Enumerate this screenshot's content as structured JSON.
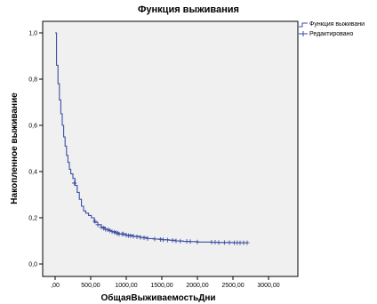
{
  "chart_data": {
    "type": "line",
    "title": "Функция выживания",
    "xlabel": "ОбщаяВыживаемостьДни",
    "ylabel": "Накопленное выживание",
    "xlim": [
      0,
      3000
    ],
    "ylim": [
      0,
      1
    ],
    "x_ticks": [
      0,
      500,
      1000,
      1500,
      2000,
      2500,
      3000
    ],
    "x_tick_labels": [
      ",00",
      "500,00",
      "1000,00",
      "1500,00",
      "2000,00",
      "2500,00",
      "3000,00"
    ],
    "y_ticks": [
      0,
      0.2,
      0.4,
      0.6,
      0.8,
      1.0
    ],
    "y_tick_labels": [
      "0,0",
      "0,2",
      "0,4",
      "0,6",
      "0,8",
      "1,0"
    ],
    "grid": false,
    "legend_position": "top-right, outside plot",
    "legend": [
      {
        "label": "Функция выживани",
        "marker": "step-line"
      },
      {
        "label": "Редактировано",
        "marker": "plus"
      }
    ],
    "series": [
      {
        "name": "Функция выживани",
        "color": "#3c4fa3",
        "x": [
          0,
          20,
          40,
          60,
          80,
          100,
          120,
          140,
          160,
          180,
          200,
          220,
          250,
          280,
          310,
          340,
          370,
          400,
          430,
          470,
          510,
          550,
          600,
          650,
          700,
          750,
          800,
          850,
          900,
          950,
          1000,
          1100,
          1200,
          1300,
          1400,
          1500,
          1600,
          1700,
          1800,
          1900,
          2000,
          2100,
          2200,
          2300,
          2400,
          2500,
          2600,
          2700
        ],
        "y": [
          1.0,
          0.86,
          0.78,
          0.71,
          0.65,
          0.6,
          0.55,
          0.51,
          0.47,
          0.44,
          0.41,
          0.39,
          0.37,
          0.34,
          0.31,
          0.28,
          0.25,
          0.23,
          0.22,
          0.21,
          0.2,
          0.18,
          0.17,
          0.16,
          0.15,
          0.145,
          0.14,
          0.135,
          0.13,
          0.13,
          0.125,
          0.12,
          0.115,
          0.11,
          0.108,
          0.105,
          0.103,
          0.1,
          0.098,
          0.097,
          0.095,
          0.095,
          0.094,
          0.093,
          0.093,
          0.092,
          0.092,
          0.092
        ]
      }
    ],
    "censored": {
      "name": "Редактировано",
      "color": "#3c4fa3",
      "x": [
        270,
        560,
        600,
        650,
        680,
        710,
        740,
        770,
        800,
        830,
        860,
        880,
        900,
        940,
        960,
        1000,
        1030,
        1060,
        1100,
        1150,
        1200,
        1250,
        1300,
        1400,
        1480,
        1520,
        1580,
        1650,
        1700,
        1760,
        1850,
        1900,
        2000,
        2200,
        2250,
        2300,
        2380,
        2450,
        2520,
        2560,
        2600,
        2650,
        2700
      ],
      "y": [
        0.35,
        0.185,
        0.17,
        0.16,
        0.155,
        0.15,
        0.148,
        0.145,
        0.14,
        0.138,
        0.135,
        0.133,
        0.13,
        0.13,
        0.13,
        0.125,
        0.123,
        0.122,
        0.12,
        0.118,
        0.115,
        0.113,
        0.11,
        0.108,
        0.106,
        0.105,
        0.104,
        0.102,
        0.1,
        0.099,
        0.098,
        0.097,
        0.095,
        0.094,
        0.094,
        0.093,
        0.093,
        0.093,
        0.092,
        0.092,
        0.092,
        0.092,
        0.092
      ]
    },
    "colors": {
      "plot_background": "#f0f0f0",
      "axis": "#000000",
      "series": "#3c4fa3"
    }
  }
}
